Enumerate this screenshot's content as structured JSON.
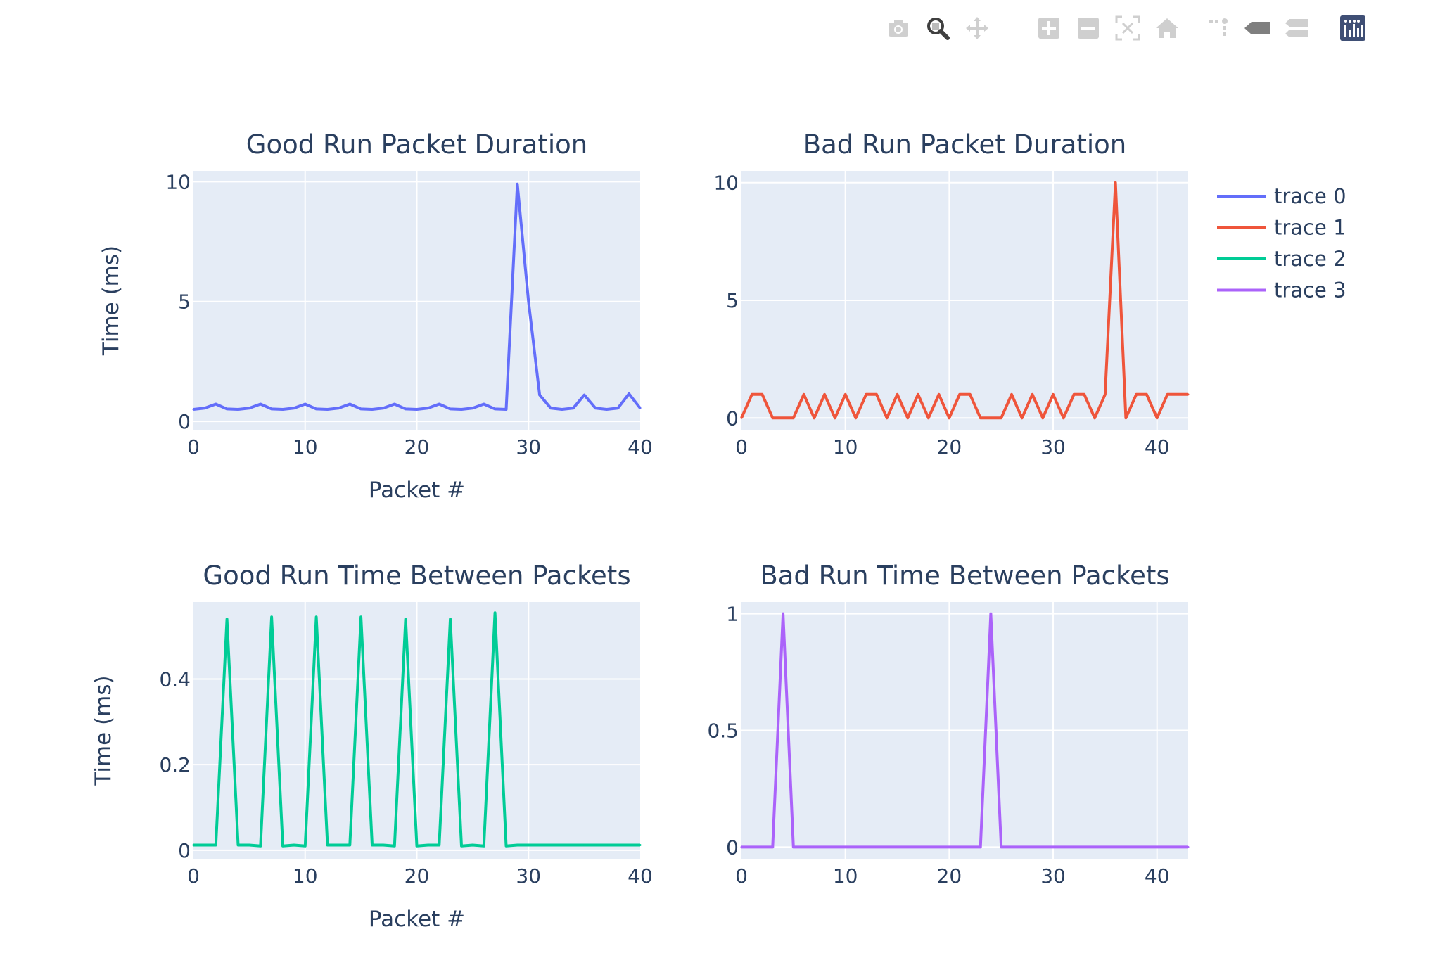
{
  "modebar": {
    "buttons": [
      {
        "name": "camera-icon",
        "active": false
      },
      {
        "name": "zoom-icon",
        "active": true
      },
      {
        "name": "pan-icon",
        "active": false
      },
      {
        "name": "zoom-in-icon",
        "active": false
      },
      {
        "name": "zoom-out-icon",
        "active": false
      },
      {
        "name": "autoscale-icon",
        "active": false
      },
      {
        "name": "home-icon",
        "active": false
      },
      {
        "name": "spike-lines-icon",
        "active": false
      },
      {
        "name": "hover-closest-icon",
        "active": false
      },
      {
        "name": "hover-compare-icon",
        "active": false
      },
      {
        "name": "plotly-logo-icon",
        "active": false
      }
    ]
  },
  "legend": {
    "placement": "top-right",
    "items": [
      {
        "label": "trace 0",
        "color": "#636efa"
      },
      {
        "label": "trace 1",
        "color": "#ef553b"
      },
      {
        "label": "trace 2",
        "color": "#00cc96"
      },
      {
        "label": "trace 3",
        "color": "#ab63fa"
      }
    ]
  },
  "chart_data": [
    {
      "type": "line",
      "title": "Good Run Packet Duration",
      "xlabel": "Packet #",
      "ylabel": "Time (ms)",
      "xlim": [
        0,
        40
      ],
      "ylim": [
        -0.35,
        10.45
      ],
      "xticks": [
        0,
        10,
        20,
        30,
        40
      ],
      "yticks": [
        0,
        5,
        10
      ],
      "grid": true,
      "series": [
        {
          "name": "trace 0",
          "color": "#636efa",
          "x": [
            0,
            1,
            2,
            3,
            4,
            5,
            6,
            7,
            8,
            9,
            10,
            11,
            12,
            13,
            14,
            15,
            16,
            17,
            18,
            19,
            20,
            21,
            22,
            23,
            24,
            25,
            26,
            27,
            28,
            29,
            30,
            31,
            32,
            33,
            34,
            35,
            36,
            37,
            38,
            39,
            40
          ],
          "y": [
            0.5,
            0.55,
            0.72,
            0.52,
            0.5,
            0.55,
            0.72,
            0.52,
            0.5,
            0.55,
            0.72,
            0.52,
            0.5,
            0.55,
            0.72,
            0.52,
            0.5,
            0.55,
            0.72,
            0.52,
            0.5,
            0.55,
            0.72,
            0.52,
            0.5,
            0.55,
            0.72,
            0.52,
            0.5,
            9.9,
            5.0,
            1.1,
            0.55,
            0.5,
            0.55,
            1.1,
            0.55,
            0.5,
            0.55,
            1.15,
            0.55
          ]
        }
      ]
    },
    {
      "type": "line",
      "title": "Bad Run Packet Duration",
      "xlabel": "",
      "ylabel": "",
      "xlim": [
        0,
        43
      ],
      "ylim": [
        -0.5,
        10.5
      ],
      "xticks": [
        0,
        10,
        20,
        30,
        40
      ],
      "yticks": [
        0,
        5,
        10
      ],
      "grid": true,
      "series": [
        {
          "name": "trace 1",
          "color": "#ef553b",
          "x": [
            0,
            1,
            2,
            3,
            4,
            5,
            6,
            7,
            8,
            9,
            10,
            11,
            12,
            13,
            14,
            15,
            16,
            17,
            18,
            19,
            20,
            21,
            22,
            23,
            24,
            25,
            26,
            27,
            28,
            29,
            30,
            31,
            32,
            33,
            34,
            35,
            36,
            37,
            38,
            39,
            40,
            41,
            42,
            43
          ],
          "y": [
            0,
            1,
            1,
            0,
            0,
            0,
            1,
            0,
            1,
            0,
            1,
            0,
            1,
            1,
            0,
            1,
            0,
            1,
            0,
            1,
            0,
            1,
            1,
            0,
            0,
            0,
            1,
            0,
            1,
            0,
            1,
            0,
            1,
            1,
            0,
            1,
            10,
            0,
            1,
            1,
            0,
            1,
            1,
            1
          ]
        }
      ]
    },
    {
      "type": "line",
      "title": "Good Run Time Between Packets",
      "xlabel": "Packet #",
      "ylabel": "Time (ms)",
      "xlim": [
        0,
        40
      ],
      "ylim": [
        -0.02,
        0.58
      ],
      "xticks": [
        0,
        10,
        20,
        30,
        40
      ],
      "yticks": [
        0,
        0.2,
        0.4
      ],
      "grid": true,
      "series": [
        {
          "name": "trace 2",
          "color": "#00cc96",
          "x": [
            0,
            1,
            2,
            3,
            4,
            5,
            6,
            7,
            8,
            9,
            10,
            11,
            12,
            13,
            14,
            15,
            16,
            17,
            18,
            19,
            20,
            21,
            22,
            23,
            24,
            25,
            26,
            27,
            28,
            29,
            30,
            31,
            32,
            33,
            34,
            35,
            36,
            37,
            38,
            39,
            40
          ],
          "y": [
            0.012,
            0.012,
            0.012,
            0.54,
            0.012,
            0.012,
            0.01,
            0.545,
            0.01,
            0.012,
            0.01,
            0.545,
            0.012,
            0.012,
            0.012,
            0.545,
            0.012,
            0.012,
            0.01,
            0.54,
            0.01,
            0.012,
            0.012,
            0.54,
            0.01,
            0.012,
            0.01,
            0.555,
            0.01,
            0.012,
            0.012,
            0.012,
            0.012,
            0.012,
            0.012,
            0.012,
            0.012,
            0.012,
            0.012,
            0.012,
            0.012
          ]
        }
      ]
    },
    {
      "type": "line",
      "title": "Bad Run Time Between Packets",
      "xlabel": "",
      "ylabel": "",
      "xlim": [
        0,
        43
      ],
      "ylim": [
        -0.05,
        1.05
      ],
      "xticks": [
        0,
        10,
        20,
        30,
        40
      ],
      "yticks": [
        0,
        0.5,
        1
      ],
      "grid": true,
      "series": [
        {
          "name": "trace 3",
          "color": "#ab63fa",
          "x": [
            0,
            1,
            2,
            3,
            4,
            5,
            6,
            7,
            8,
            9,
            10,
            11,
            12,
            13,
            14,
            15,
            16,
            17,
            18,
            19,
            20,
            21,
            22,
            23,
            24,
            25,
            26,
            27,
            28,
            29,
            30,
            31,
            32,
            33,
            34,
            35,
            36,
            37,
            38,
            39,
            40,
            41,
            42,
            43
          ],
          "y": [
            0,
            0,
            0,
            0,
            1,
            0,
            0,
            0,
            0,
            0,
            0,
            0,
            0,
            0,
            0,
            0,
            0,
            0,
            0,
            0,
            0,
            0,
            0,
            0,
            1,
            0,
            0,
            0,
            0,
            0,
            0,
            0,
            0,
            0,
            0,
            0,
            0,
            0,
            0,
            0,
            0,
            0,
            0,
            0
          ]
        }
      ]
    }
  ]
}
